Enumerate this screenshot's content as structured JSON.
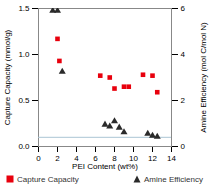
{
  "chart_data": {
    "type": "scatter",
    "xlabel": "PEI Content (wt%)",
    "ylabel": "Capture Capacity (mmol/g)",
    "y2label": "Amine Efficiency (mol C/mol N)",
    "series": [
      {
        "name": "Capture Capacity",
        "color": "#e8000d",
        "marker": "square",
        "x": [
          2.0,
          2.2,
          6.5,
          7.5,
          8.0,
          9.0,
          9.5,
          11.0,
          12.0,
          12.5
        ],
        "values": [
          1.17,
          0.93,
          0.77,
          0.75,
          0.63,
          0.65,
          0.65,
          0.78,
          0.77,
          0.59
        ]
      },
      {
        "name": "Amine Efficiency",
        "color": "#2a2a2a",
        "marker": "triangle",
        "axis": "y2",
        "x": [
          1.5,
          2.0,
          2.5,
          7.0,
          7.5,
          8.0,
          8.5,
          9.0,
          11.5,
          12.0,
          12.5
        ],
        "values": [
          5.9,
          5.9,
          3.25,
          0.95,
          0.87,
          1.1,
          0.82,
          0.62,
          0.55,
          0.47,
          0.42
        ]
      }
    ],
    "xlim": [
      0,
      14
    ],
    "ylim": [
      0.0,
      1.5
    ],
    "y2lim": [
      0,
      6
    ],
    "xticks": [
      0,
      2,
      4,
      6,
      8,
      10,
      12,
      14
    ],
    "yticks": [
      {
        "value": 0,
        "label": "0.0"
      },
      0.5,
      {
        "value": 1,
        "label": "1.0"
      },
      1.5
    ],
    "y2ticks": [
      0,
      2,
      4,
      6
    ],
    "reference_line": {
      "y": 0.1,
      "color": "#aac5d4"
    },
    "grid": false,
    "legend": "bottom"
  }
}
